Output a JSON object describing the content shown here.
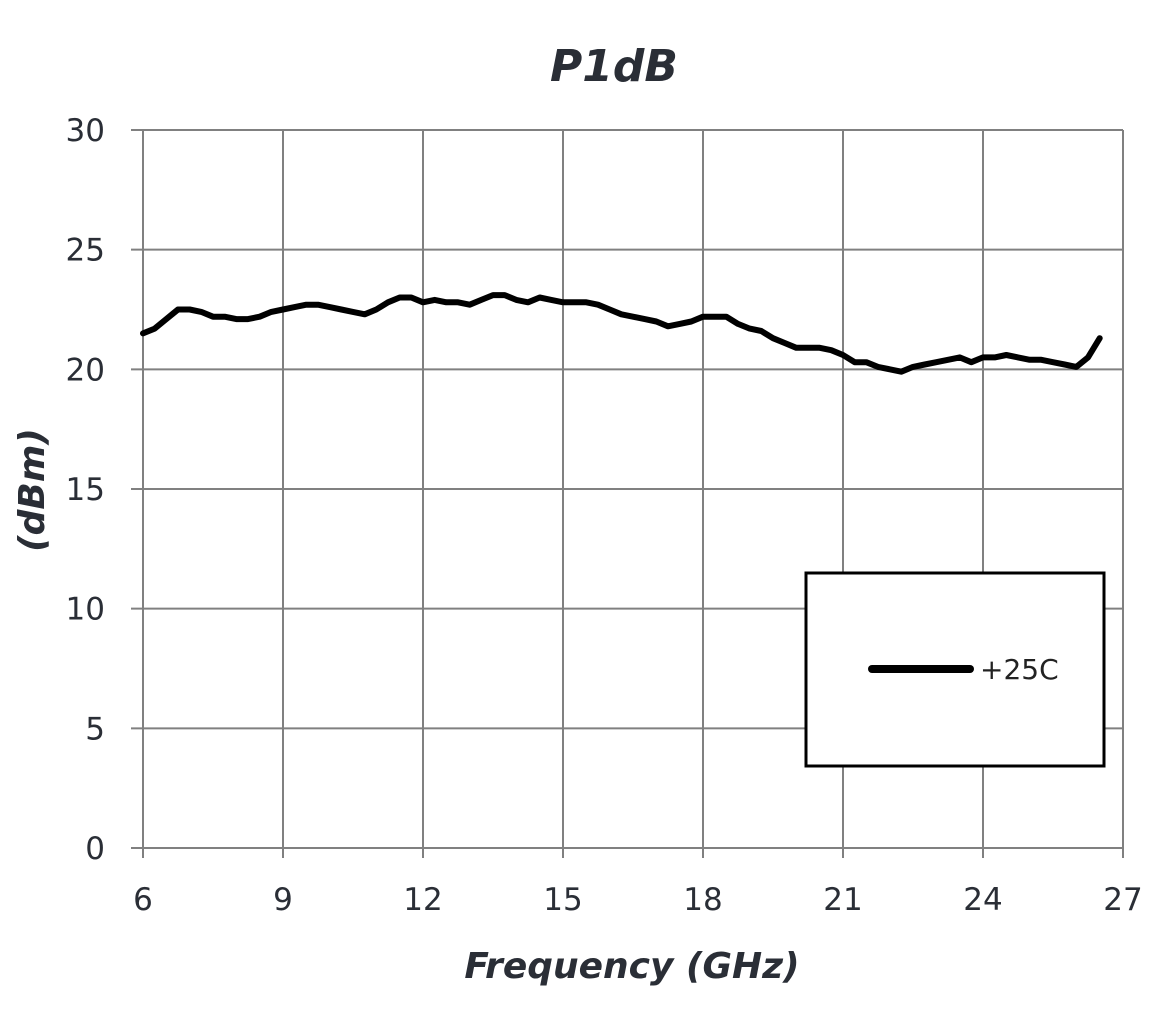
{
  "chart_data": {
    "type": "line",
    "title": "P1dB",
    "xlabel": "Frequency (GHz)",
    "ylabel": "(dBm)",
    "xlim": [
      6,
      27
    ],
    "ylim": [
      0,
      30
    ],
    "x_ticks": [
      6,
      9,
      12,
      15,
      18,
      21,
      24,
      27
    ],
    "y_ticks": [
      0,
      5,
      10,
      15,
      20,
      25,
      30
    ],
    "grid": true,
    "legend_position": "lower-right",
    "colors": {
      "line": "#000000",
      "grid": "#808080",
      "text": "#2a2e36"
    },
    "series": [
      {
        "name": "+25C",
        "x": [
          6.0,
          6.25,
          6.5,
          6.75,
          7.0,
          7.25,
          7.5,
          7.75,
          8.0,
          8.25,
          8.5,
          8.75,
          9.0,
          9.25,
          9.5,
          9.75,
          10.0,
          10.25,
          10.5,
          10.75,
          11.0,
          11.25,
          11.5,
          11.75,
          12.0,
          12.25,
          12.5,
          12.75,
          13.0,
          13.25,
          13.5,
          13.75,
          14.0,
          14.25,
          14.5,
          14.75,
          15.0,
          15.25,
          15.5,
          15.75,
          16.0,
          16.25,
          16.5,
          16.75,
          17.0,
          17.25,
          17.5,
          17.75,
          18.0,
          18.25,
          18.5,
          18.75,
          19.0,
          19.25,
          19.5,
          19.75,
          20.0,
          20.25,
          20.5,
          20.75,
          21.0,
          21.25,
          21.5,
          21.75,
          22.0,
          22.25,
          22.5,
          22.75,
          23.0,
          23.25,
          23.5,
          23.75,
          24.0,
          24.25,
          24.5,
          24.75,
          25.0,
          25.25,
          25.5,
          25.75,
          26.0,
          26.25,
          26.5
        ],
        "y": [
          21.5,
          21.7,
          22.1,
          22.5,
          22.5,
          22.4,
          22.2,
          22.2,
          22.1,
          22.1,
          22.2,
          22.4,
          22.5,
          22.6,
          22.7,
          22.7,
          22.6,
          22.5,
          22.4,
          22.3,
          22.5,
          22.8,
          23.0,
          23.0,
          22.8,
          22.9,
          22.8,
          22.8,
          22.7,
          22.9,
          23.1,
          23.1,
          22.9,
          22.8,
          23.0,
          22.9,
          22.8,
          22.8,
          22.8,
          22.7,
          22.5,
          22.3,
          22.2,
          22.1,
          22.0,
          21.8,
          21.9,
          22.0,
          22.2,
          22.2,
          22.2,
          21.9,
          21.7,
          21.6,
          21.3,
          21.1,
          20.9,
          20.9,
          20.9,
          20.8,
          20.6,
          20.3,
          20.3,
          20.1,
          20.0,
          19.9,
          20.1,
          20.2,
          20.3,
          20.4,
          20.5,
          20.3,
          20.5,
          20.5,
          20.6,
          20.5,
          20.4,
          20.4,
          20.3,
          20.2,
          20.1,
          20.5,
          21.3
        ]
      }
    ]
  }
}
